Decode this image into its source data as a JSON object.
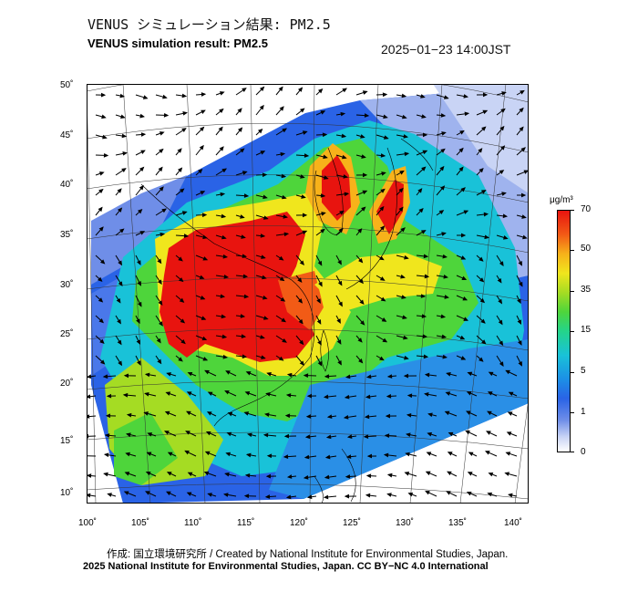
{
  "title_jp": "VENUS シミュレーション結果: PM2.5",
  "title_en": "VENUS simulation result: PM2.5",
  "timestamp": "2025−01−23 14:00JST",
  "lat_labels": [
    "50˚",
    "45˚",
    "40˚",
    "35˚",
    "30˚",
    "25˚",
    "20˚",
    "15˚",
    "10˚"
  ],
  "lon_labels": [
    "100˚",
    "105˚",
    "110˚",
    "115˚",
    "120˚",
    "125˚",
    "130˚",
    "135˚",
    "140˚"
  ],
  "colorbar": {
    "unit": "μg/m³",
    "ticks": [
      "70",
      "50",
      "35",
      "15",
      "5",
      "1",
      "0"
    ]
  },
  "colors": {
    "very_high": "#e8140f",
    "high": "#f25b16",
    "mid_high": "#f0e61d",
    "mid": "#4ed53b",
    "low": "#19c2d8",
    "very_low": "#2a63e6",
    "minimal": "#c9d4f5"
  },
  "credit": "作成: 国立環境研究所 / Created by National Institute for Environmental Studies, Japan.",
  "copyright": "2025 National Institute for Environmental Studies, Japan. CC BY−NC 4.0 International"
}
